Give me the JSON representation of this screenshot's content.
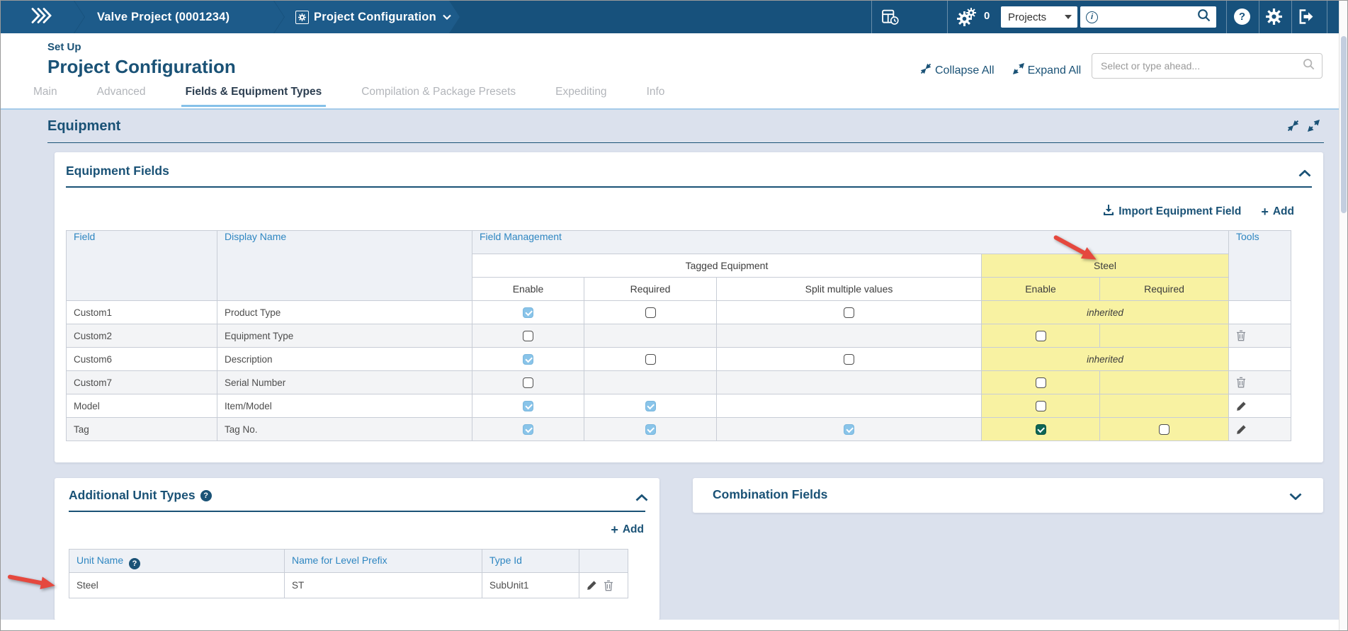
{
  "navbar": {
    "project_label": "Valve Project (0001234)",
    "module_label": "Project Configuration",
    "notifications_count": "0",
    "scope_select_value": "Projects"
  },
  "header": {
    "eyebrow": "Set Up",
    "title": "Project Configuration",
    "collapse_all_label": "Collapse All",
    "expand_all_label": "Expand All",
    "typeahead_placeholder": "Select or type ahead...",
    "tabs": [
      {
        "label": "Main",
        "active": false
      },
      {
        "label": "Advanced",
        "active": false
      },
      {
        "label": "Fields & Equipment Types",
        "active": true
      },
      {
        "label": "Compilation & Package Presets",
        "active": false
      },
      {
        "label": "Expediting",
        "active": false
      },
      {
        "label": "Info",
        "active": false
      }
    ]
  },
  "section": {
    "title": "Equipment",
    "equipment_fields": {
      "title": "Equipment Fields",
      "import_label": "Import Equipment Field",
      "add_label": "Add",
      "table": {
        "columns": {
          "field": "Field",
          "display_name": "Display Name",
          "field_management": "Field Management",
          "tools": "Tools"
        },
        "groups": {
          "tagged": "Tagged Equipment",
          "steel": "Steel"
        },
        "tagged_subcolumns": [
          "Enable",
          "Required",
          "Split multiple values"
        ],
        "steel_subcolumns": [
          "Enable",
          "Required"
        ],
        "inherited_label": "inherited",
        "rows": [
          {
            "field": "Custom1",
            "display_name": "Product Type",
            "tagged_enable": "checked",
            "tagged_required": "unchecked",
            "split": "unchecked",
            "steel": "inherited",
            "tool": "none"
          },
          {
            "field": "Custom2",
            "display_name": "Equipment Type",
            "tagged_enable": "unchecked",
            "tagged_required": "none",
            "split": "none",
            "steel_enable": "unchecked",
            "steel_required": "none",
            "tool": "trash"
          },
          {
            "field": "Custom6",
            "display_name": "Description",
            "tagged_enable": "checked",
            "tagged_required": "unchecked",
            "split": "unchecked",
            "steel": "inherited",
            "tool": "none"
          },
          {
            "field": "Custom7",
            "display_name": "Serial Number",
            "tagged_enable": "unchecked",
            "tagged_required": "none",
            "split": "none",
            "steel_enable": "unchecked",
            "steel_required": "none",
            "tool": "trash"
          },
          {
            "field": "Model",
            "display_name": "Item/Model",
            "tagged_enable": "checked",
            "tagged_required": "checked",
            "split": "none",
            "steel_enable": "unchecked",
            "steel_required": "none",
            "tool": "pencil"
          },
          {
            "field": "Tag",
            "display_name": "Tag No.",
            "tagged_enable": "checked",
            "tagged_required": "checked",
            "split": "checked",
            "steel_enable": "checked-dark",
            "steel_required": "unchecked",
            "tool": "pencil"
          }
        ]
      }
    },
    "additional_unit_types": {
      "title": "Additional Unit Types",
      "add_label": "Add",
      "columns": [
        "Unit Name",
        "Name for Level Prefix",
        "Type Id"
      ],
      "rows": [
        {
          "unit_name": "Steel",
          "level_prefix": "ST",
          "type_id": "SubUnit1"
        }
      ]
    },
    "combination_fields": {
      "title": "Combination Fields"
    }
  },
  "colors": {
    "navbar_blue": "#17517c",
    "accent_navy": "#1a5276",
    "link_blue": "#2e86c1",
    "highlight_yellow": "#f8f2a2",
    "checked_blue": "#89c4e9",
    "checked_green": "#0e6655",
    "annotation_red": "#e5483e",
    "section_bg": "#dbe1ed"
  }
}
